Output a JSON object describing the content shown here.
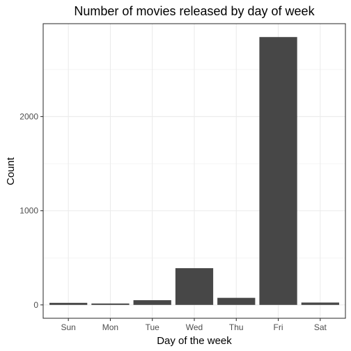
{
  "chart_data": {
    "type": "bar",
    "title": "Number of movies released by day of week",
    "xlabel": "Day of the week",
    "ylabel": "Count",
    "categories": [
      "Sun",
      "Mon",
      "Tue",
      "Wed",
      "Thu",
      "Fri",
      "Sat"
    ],
    "values": [
      22,
      15,
      50,
      390,
      75,
      2845,
      25
    ],
    "ylim": [
      -142,
      2987
    ],
    "yticks": [
      0,
      1000,
      2000
    ],
    "ytick_labels": [
      "0",
      "1000",
      "2000"
    ],
    "grid": true,
    "bar_color": "#474747"
  }
}
